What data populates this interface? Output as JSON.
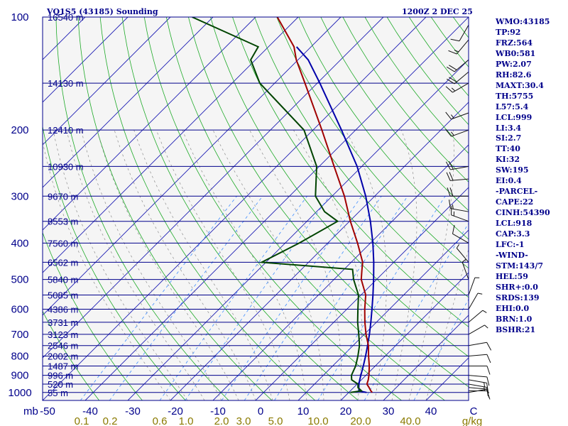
{
  "chart_data": {
    "type": "skewt",
    "title": "VQ1S5 (43185) Sounding",
    "valid_time": "1200Z  2 DEC 25",
    "pressure_ticks": [
      100,
      200,
      300,
      400,
      500,
      600,
      700,
      800,
      900,
      1000
    ],
    "pressure_axis_label": "mb",
    "temperature_ticks": [
      "-50",
      "-40",
      "-30",
      "-20",
      "-10",
      "0",
      "10",
      "20",
      "30",
      "40",
      "C"
    ],
    "mixing_ratio_ticks": [
      "0.1",
      "0.2",
      "0.6",
      "1.0",
      "2.0",
      "3.0",
      "5.0",
      "10.0",
      "20.0",
      "40.0",
      "g/kg"
    ],
    "height_labels": [
      {
        "p": 100,
        "label": "16540 m"
      },
      {
        "p": 150,
        "label": "14130 m"
      },
      {
        "p": 200,
        "label": "12410 m"
      },
      {
        "p": 250,
        "label": "10930 m"
      },
      {
        "p": 300,
        "label": "9670 m"
      },
      {
        "p": 350,
        "label": "8553 m"
      },
      {
        "p": 400,
        "label": "7560 m"
      },
      {
        "p": 450,
        "label": "6562 m"
      },
      {
        "p": 500,
        "label": "5840 m"
      },
      {
        "p": 550,
        "label": "5085 m"
      },
      {
        "p": 600,
        "label": "4386 m"
      },
      {
        "p": 650,
        "label": "3731 m"
      },
      {
        "p": 700,
        "label": "3123 m"
      },
      {
        "p": 750,
        "label": "2546 m"
      },
      {
        "p": 800,
        "label": "2002 m"
      },
      {
        "p": 850,
        "label": "1487 m"
      },
      {
        "p": 900,
        "label": "996 m"
      },
      {
        "p": 950,
        "label": "520 m"
      },
      {
        "p": 1000,
        "label": "55 m"
      }
    ],
    "temperature_profile": [
      {
        "p": 1000,
        "t": 25.5
      },
      {
        "p": 990,
        "t": 24.8
      },
      {
        "p": 970,
        "t": 23.6
      },
      {
        "p": 950,
        "t": 22.3
      },
      {
        "p": 925,
        "t": 21.6
      },
      {
        "p": 900,
        "t": 20.7
      },
      {
        "p": 850,
        "t": 18.6
      },
      {
        "p": 800,
        "t": 16.1
      },
      {
        "p": 750,
        "t": 13.6
      },
      {
        "p": 700,
        "t": 10.4
      },
      {
        "p": 650,
        "t": 7.3
      },
      {
        "p": 600,
        "t": 4.2
      },
      {
        "p": 550,
        "t": 1.1
      },
      {
        "p": 500,
        "t": -3.6
      },
      {
        "p": 470,
        "t": -5.8
      },
      {
        "p": 450,
        "t": -7.3
      },
      {
        "p": 400,
        "t": -13.0
      },
      {
        "p": 350,
        "t": -19.8
      },
      {
        "p": 300,
        "t": -27.1
      },
      {
        "p": 250,
        "t": -36.5
      },
      {
        "p": 200,
        "t": -47.9
      },
      {
        "p": 150,
        "t": -62.9
      },
      {
        "p": 130,
        "t": -70.4
      },
      {
        "p": 120,
        "t": -74.0
      },
      {
        "p": 100,
        "t": -84.9
      }
    ],
    "dewpoint_profile": [
      {
        "p": 1000,
        "td": 20.4
      },
      {
        "p": 990,
        "td": 22.6
      },
      {
        "p": 970,
        "td": 21.0
      },
      {
        "p": 950,
        "td": 20.2
      },
      {
        "p": 925,
        "td": 17.7
      },
      {
        "p": 900,
        "td": 16.6
      },
      {
        "p": 850,
        "td": 15.4
      },
      {
        "p": 800,
        "td": 13.6
      },
      {
        "p": 750,
        "td": 11.5
      },
      {
        "p": 700,
        "td": 8.7
      },
      {
        "p": 650,
        "td": 5.6
      },
      {
        "p": 600,
        "td": 2.6
      },
      {
        "p": 550,
        "td": -0.6
      },
      {
        "p": 500,
        "td": -5.4
      },
      {
        "p": 470,
        "td": -8.0
      },
      {
        "p": 450,
        "td": -31.0
      },
      {
        "p": 400,
        "td": -26.7
      },
      {
        "p": 350,
        "td": -22.8
      },
      {
        "p": 330,
        "td": -28.1
      },
      {
        "p": 300,
        "td": -33.9
      },
      {
        "p": 250,
        "td": -40.6
      },
      {
        "p": 200,
        "td": -52.1
      },
      {
        "p": 150,
        "td": -73.5
      },
      {
        "p": 130,
        "td": -81.1
      },
      {
        "p": 120,
        "td": -82.4
      },
      {
        "p": 100,
        "td": -104.9
      }
    ],
    "parcel_profile": [
      {
        "p": 1000,
        "t": 24.2
      },
      {
        "p": 990,
        "t": 22.0
      },
      {
        "p": 970,
        "t": 21.2
      },
      {
        "p": 950,
        "t": 20.4
      },
      {
        "p": 925,
        "t": 19.6
      },
      {
        "p": 900,
        "t": 18.8
      },
      {
        "p": 850,
        "t": 17.2
      },
      {
        "p": 800,
        "t": 15.4
      },
      {
        "p": 750,
        "t": 13.4
      },
      {
        "p": 700,
        "t": 11.2
      },
      {
        "p": 650,
        "t": 8.7
      },
      {
        "p": 600,
        "t": 5.9
      },
      {
        "p": 550,
        "t": 2.8
      },
      {
        "p": 500,
        "t": -0.7
      },
      {
        "p": 450,
        "t": -4.7
      },
      {
        "p": 400,
        "t": -9.4
      },
      {
        "p": 350,
        "t": -15.1
      },
      {
        "p": 300,
        "t": -22.1
      },
      {
        "p": 250,
        "t": -31.1
      },
      {
        "p": 200,
        "t": -43.3
      },
      {
        "p": 150,
        "t": -59.4
      },
      {
        "p": 130,
        "t": -67.6
      },
      {
        "p": 120,
        "t": -73.4
      }
    ],
    "wind_barbs": [
      {
        "p": 1000,
        "dir": 80,
        "spd": 5
      },
      {
        "p": 990,
        "dir": 90,
        "spd": 10
      },
      {
        "p": 970,
        "dir": 95,
        "spd": 10
      },
      {
        "p": 950,
        "dir": 100,
        "spd": 15
      },
      {
        "p": 925,
        "dir": 100,
        "spd": 15
      },
      {
        "p": 900,
        "dir": 95,
        "spd": 10
      },
      {
        "p": 850,
        "dir": 90,
        "spd": 10
      },
      {
        "p": 800,
        "dir": 85,
        "spd": 10
      },
      {
        "p": 750,
        "dir": 80,
        "spd": 10
      },
      {
        "p": 700,
        "dir": 60,
        "spd": 5
      },
      {
        "p": 650,
        "dir": 50,
        "spd": 5
      },
      {
        "p": 600,
        "dir": 30,
        "spd": 5
      },
      {
        "p": 550,
        "dir": 20,
        "spd": 5
      },
      {
        "p": 500,
        "dir": 340,
        "spd": 5
      },
      {
        "p": 450,
        "dir": 320,
        "spd": 5
      },
      {
        "p": 400,
        "dir": 300,
        "spd": 10
      },
      {
        "p": 350,
        "dir": 290,
        "spd": 15
      },
      {
        "p": 330,
        "dir": 280,
        "spd": 15
      },
      {
        "p": 300,
        "dir": 270,
        "spd": 20
      },
      {
        "p": 270,
        "dir": 265,
        "spd": 20
      },
      {
        "p": 250,
        "dir": 260,
        "spd": 20
      },
      {
        "p": 200,
        "dir": 250,
        "spd": 15
      },
      {
        "p": 180,
        "dir": 250,
        "spd": 15
      },
      {
        "p": 150,
        "dir": 240,
        "spd": 15
      },
      {
        "p": 140,
        "dir": 230,
        "spd": 20
      },
      {
        "p": 130,
        "dir": 230,
        "spd": 20
      },
      {
        "p": 115,
        "dir": 220,
        "spd": 15
      },
      {
        "p": 105,
        "dir": 210,
        "spd": 10
      }
    ]
  },
  "indices": [
    "WMO:43185",
    "TP:92",
    "FRZ:564",
    "WB0:581",
    "PW:2.07",
    "RH:82.6",
    "MAXT:30.4",
    "TH:5755",
    "L57:5.4",
    "LCL:999",
    "LI:3.4",
    "SI:2.7",
    "TT:40",
    "KI:32",
    "SW:195",
    "EI:0.4",
    "-PARCEL-",
    "CAPE:22",
    "CINH:54390",
    "LCL:918",
    "CAP:3.3",
    "LFC:-1",
    "-WIND-",
    "STM:143/7",
    "HEL:59",
    "SHR+:0.0",
    "SRDS:139",
    "EHI:0.0",
    "BRN:1.0",
    "BSHR:21"
  ],
  "colors": {
    "isobar": "#00008b",
    "isotherm": "#1c1cb4",
    "dry_adiabat": "#1eaa28",
    "moist_adiabat": "#8c8c8c",
    "mixing_ratio": "#3c8cff",
    "temperature": "#a00000",
    "dewpoint": "#004400",
    "parcel": "#0000aa",
    "mixing_label": "#8a7a00",
    "text": "#00008b"
  }
}
